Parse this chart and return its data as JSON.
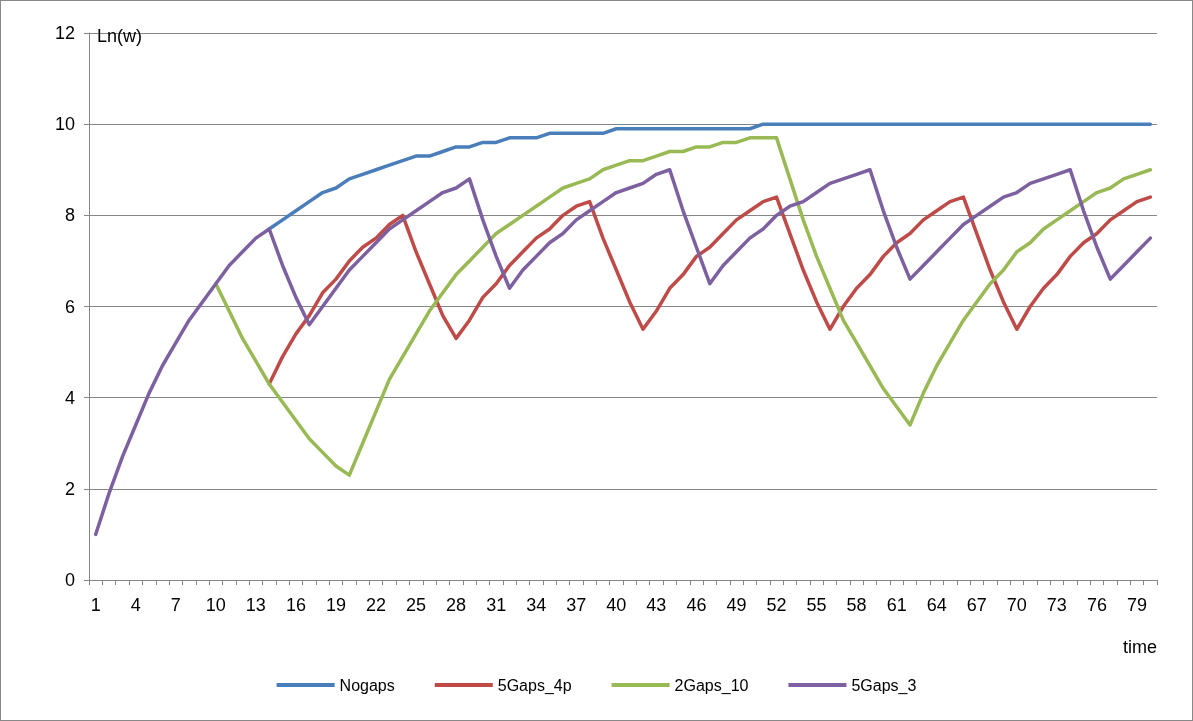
{
  "chart_data": {
    "type": "line",
    "xlabel": "time",
    "ylabel": "Ln(w)",
    "categories": [
      "1",
      null,
      null,
      "4",
      null,
      null,
      "7",
      null,
      null,
      "10",
      null,
      null,
      "13",
      null,
      null,
      "16",
      null,
      null,
      "19",
      null,
      null,
      "22",
      null,
      null,
      "25",
      null,
      null,
      "28",
      null,
      null,
      "31",
      null,
      null,
      "34",
      null,
      null,
      "37",
      null,
      null,
      "40",
      null,
      null,
      "43",
      null,
      null,
      "46",
      null,
      null,
      "49",
      null,
      null,
      "52",
      null,
      null,
      "55",
      null,
      null,
      "58",
      null,
      null,
      "61",
      null,
      null,
      "64",
      null,
      null,
      "67",
      null,
      null,
      "70",
      null,
      null,
      "73",
      null,
      null,
      "76",
      null,
      null,
      "79",
      null
    ],
    "ylim": [
      0,
      12
    ],
    "yticks": [
      0,
      2,
      4,
      6,
      8,
      10,
      12
    ],
    "grid": "y",
    "legend": "bottom",
    "marker": "none",
    "line_style": "solid",
    "series": [
      {
        "name": "Nogaps",
        "color": "#4a7ebb",
        "values": [
          null,
          null,
          null,
          null,
          null,
          null,
          null,
          null,
          null,
          null,
          null,
          null,
          null,
          7.7,
          7.9,
          8.1,
          8.3,
          8.5,
          8.6,
          8.8,
          8.9,
          9.0,
          9.1,
          9.2,
          9.3,
          9.3,
          9.4,
          9.5,
          9.5,
          9.6,
          9.6,
          9.7,
          9.7,
          9.7,
          9.8,
          9.8,
          9.8,
          9.8,
          9.8,
          9.9,
          9.9,
          9.9,
          9.9,
          9.9,
          9.9,
          9.9,
          9.9,
          9.9,
          9.9,
          9.9,
          10,
          10,
          10,
          10,
          10,
          10,
          10,
          10,
          10,
          10,
          10,
          10,
          10,
          10,
          10,
          10,
          10,
          10,
          10,
          10,
          10,
          10,
          10,
          10,
          10,
          10,
          10,
          10,
          10,
          10
        ]
      },
      {
        "name": "5Gaps_4p",
        "color": "#be4b48",
        "values": [
          null,
          null,
          null,
          null,
          null,
          null,
          null,
          null,
          null,
          null,
          null,
          null,
          null,
          4.3,
          4.9,
          5.4,
          5.8,
          6.3,
          6.6,
          7.0,
          7.3,
          7.5,
          7.8,
          8.0,
          7.2,
          6.5,
          5.8,
          5.3,
          5.7,
          6.2,
          6.5,
          6.9,
          7.2,
          7.5,
          7.7,
          8.0,
          8.2,
          8.3,
          7.5,
          6.8,
          6.1,
          5.5,
          5.9,
          6.4,
          6.7,
          7.1,
          7.3,
          7.6,
          7.9,
          8.1,
          8.3,
          8.4,
          7.6,
          6.8,
          6.1,
          5.5,
          6.0,
          6.4,
          6.7,
          7.1,
          7.4,
          7.6,
          7.9,
          8.1,
          8.3,
          8.4,
          7.6,
          6.8,
          6.1,
          5.5,
          6.0,
          6.4,
          6.7,
          7.1,
          7.4,
          7.6,
          7.9,
          8.1,
          8.3,
          8.4
        ]
      },
      {
        "name": "2Gaps_10",
        "color": "#98b954",
        "values": [
          null,
          null,
          null,
          null,
          null,
          null,
          null,
          null,
          null,
          6.5,
          5.9,
          5.3,
          4.8,
          4.3,
          3.9,
          3.5,
          3.1,
          2.8,
          2.5,
          2.3,
          3.0,
          3.7,
          4.4,
          4.9,
          5.4,
          5.9,
          6.3,
          6.7,
          7.0,
          7.3,
          7.6,
          7.8,
          8.0,
          8.2,
          8.4,
          8.6,
          8.7,
          8.8,
          9.0,
          9.1,
          9.2,
          9.2,
          9.3,
          9.4,
          9.4,
          9.5,
          9.5,
          9.6,
          9.6,
          9.7,
          9.7,
          9.7,
          8.8,
          7.9,
          7.1,
          6.4,
          5.7,
          5.2,
          4.7,
          4.2,
          3.8,
          3.4,
          4.1,
          4.7,
          5.2,
          5.7,
          6.1,
          6.5,
          6.8,
          7.2,
          7.4,
          7.7,
          7.9,
          8.1,
          8.3,
          8.5,
          8.6,
          8.8,
          8.9,
          9.0
        ]
      },
      {
        "name": "5Gaps_3",
        "color": "#7d60a0",
        "values": [
          1,
          1.9,
          2.7,
          3.4,
          4.1,
          4.7,
          5.2,
          5.7,
          6.1,
          6.5,
          6.9,
          7.2,
          7.5,
          7.7,
          6.9,
          6.2,
          5.6,
          6.0,
          6.4,
          6.8,
          7.1,
          7.4,
          7.7,
          7.9,
          8.1,
          8.3,
          8.5,
          8.6,
          8.8,
          7.9,
          7.1,
          6.4,
          6.8,
          7.1,
          7.4,
          7.6,
          7.9,
          8.1,
          8.3,
          8.5,
          8.6,
          8.7,
          8.9,
          9.0,
          8.1,
          7.3,
          6.5,
          6.9,
          7.2,
          7.5,
          7.7,
          8.0,
          8.2,
          8.3,
          8.5,
          8.7,
          8.8,
          8.9,
          9.0,
          8.1,
          7.3,
          6.6,
          6.9,
          7.2,
          7.5,
          7.8,
          8.0,
          8.2,
          8.4,
          8.5,
          8.7,
          8.8,
          8.9,
          9.0,
          8.1,
          7.3,
          6.6,
          6.9,
          7.2,
          7.5
        ]
      }
    ]
  }
}
